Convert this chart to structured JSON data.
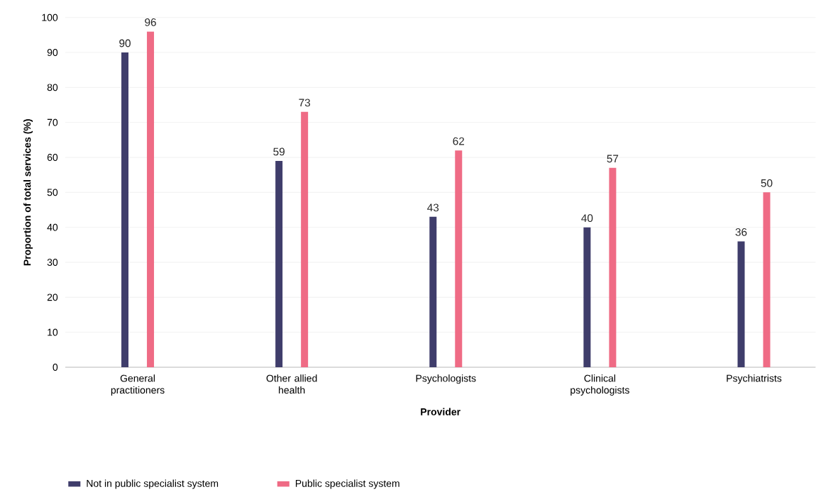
{
  "chart_data": {
    "type": "bar",
    "xlabel": "Provider",
    "ylabel": "Proportion of total services (%)",
    "categories": [
      "General practitioners",
      "Other allied health",
      "Psychologists",
      "Clinical psychologists",
      "Psychiatrists"
    ],
    "series": [
      {
        "name": "Not in public specialist system",
        "color": "#3f3d6b",
        "values": [
          90,
          59,
          43,
          40,
          36
        ]
      },
      {
        "name": "Public specialist system",
        "color": "#ef6b85",
        "values": [
          96,
          73,
          62,
          57,
          50
        ]
      }
    ],
    "ylim": [
      0,
      100
    ],
    "yticks": [
      0,
      10,
      20,
      30,
      40,
      50,
      60,
      70,
      80,
      90,
      100
    ],
    "grid": "y",
    "legend": "bottom",
    "data_labels": true
  }
}
